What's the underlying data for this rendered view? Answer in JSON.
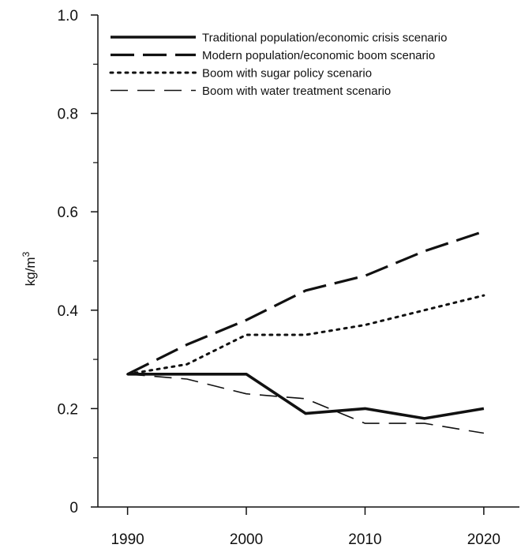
{
  "chart_data": {
    "type": "line",
    "x": [
      1990,
      1995,
      2000,
      2005,
      2010,
      2015,
      2020
    ],
    "series": [
      {
        "name": "Traditional population/economic crisis scenario",
        "style": "solid-thick",
        "values": [
          0.27,
          0.27,
          0.27,
          0.19,
          0.2,
          0.18,
          0.2
        ]
      },
      {
        "name": "Modern population/economic boom scenario",
        "style": "long-dash",
        "values": [
          0.27,
          0.33,
          0.38,
          0.44,
          0.47,
          0.52,
          0.56
        ]
      },
      {
        "name": "Boom with sugar policy scenario",
        "style": "dotted",
        "values": [
          0.27,
          0.29,
          0.35,
          0.35,
          0.37,
          0.4,
          0.43
        ]
      },
      {
        "name": "Boom with water treatment scenario",
        "style": "dash-thin",
        "values": [
          0.27,
          0.26,
          0.23,
          0.22,
          0.17,
          0.17,
          0.15
        ]
      }
    ],
    "xlim": [
      1987.5,
      2023
    ],
    "ylim": [
      0,
      1.0
    ],
    "xticks": [
      1990,
      2000,
      2010,
      2020
    ],
    "xtick_labels": [
      "1990",
      "2000",
      "2010",
      "2020"
    ],
    "yticks": [
      0,
      0.2,
      0.4,
      0.6,
      0.8,
      1.0
    ],
    "ytick_labels": [
      "0",
      "0.2",
      "0.4",
      "0.6",
      "0.8",
      "1.0"
    ],
    "ylabel": "kg/m",
    "ylabel_sup": "3",
    "xlabel": "",
    "title": "",
    "legend_position": "top-right",
    "grid": false,
    "line_color": "#111111"
  }
}
